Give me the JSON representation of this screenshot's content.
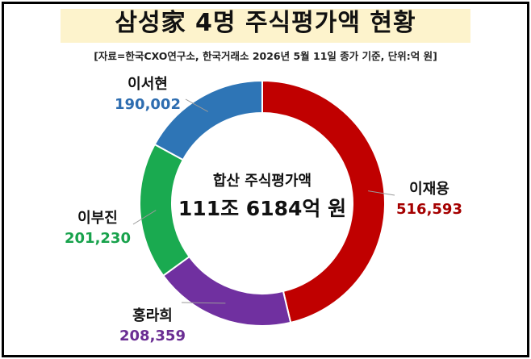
{
  "title": "삼성家 4명 주식평가액 현황",
  "source": "[자료=한국CXO연구소, 한국거래소 2026년 5월 11일 종가 기준, 단위:억 원]",
  "center": {
    "label": "합산 주식평가액",
    "total": "111조 6184억 원"
  },
  "chart_data": {
    "type": "pie",
    "variant": "donut",
    "unit": "억 원",
    "categories": [
      "이재용",
      "홍라희",
      "이부진",
      "이서현"
    ],
    "values": [
      516593,
      208359,
      201230,
      190002
    ],
    "value_labels": [
      "516,593",
      "208,359",
      "201,230",
      "190,002"
    ],
    "colors": [
      "#c00000",
      "#7030a0",
      "#1aaa50",
      "#2e75b6"
    ],
    "label_colors": [
      "#a50000",
      "#6a2d93",
      "#18a24c",
      "#2e6db0"
    ],
    "start": "12 o'clock",
    "direction": "clockwise"
  }
}
